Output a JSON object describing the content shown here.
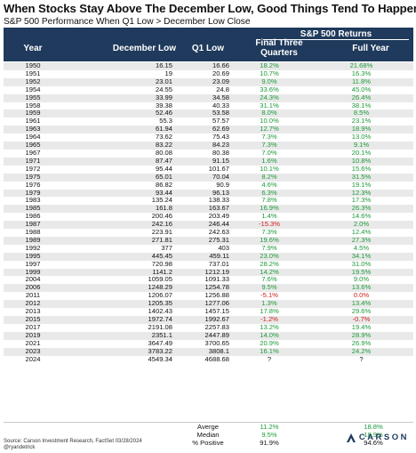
{
  "title": "When Stocks Stay Above The December Low, Good Things Tend To Happen",
  "subtitle": "S&P 500 Performance When Q1 Low > December Low Close",
  "headers": {
    "year": "Year",
    "december_low": "December Low",
    "q1_low": "Q1 Low",
    "sp_returns": "S&P 500 Returns",
    "final_three": "Final Three Quarters",
    "full_year": "Full Year"
  },
  "rows": [
    {
      "year": "1950",
      "dec": "16.15",
      "q1": "16.66",
      "ft": "18.2%",
      "fy": "21.68%"
    },
    {
      "year": "1951",
      "dec": "19",
      "q1": "20.69",
      "ft": "10.7%",
      "fy": "16.3%"
    },
    {
      "year": "1952",
      "dec": "23.01",
      "q1": "23.09",
      "ft": "9.0%",
      "fy": "11.8%"
    },
    {
      "year": "1954",
      "dec": "24.55",
      "q1": "24.8",
      "ft": "33.6%",
      "fy": "45.0%"
    },
    {
      "year": "1955",
      "dec": "33.99",
      "q1": "34.58",
      "ft": "24.3%",
      "fy": "26.4%"
    },
    {
      "year": "1958",
      "dec": "39.38",
      "q1": "40.33",
      "ft": "31.1%",
      "fy": "38.1%"
    },
    {
      "year": "1959",
      "dec": "52.46",
      "q1": "53.58",
      "ft": "8.0%",
      "fy": "8.5%"
    },
    {
      "year": "1961",
      "dec": "55.3",
      "q1": "57.57",
      "ft": "10.0%",
      "fy": "23.1%"
    },
    {
      "year": "1963",
      "dec": "61.94",
      "q1": "62.69",
      "ft": "12.7%",
      "fy": "18.9%"
    },
    {
      "year": "1964",
      "dec": "73.62",
      "q1": "75.43",
      "ft": "7.3%",
      "fy": "13.0%"
    },
    {
      "year": "1965",
      "dec": "83.22",
      "q1": "84.23",
      "ft": "7.3%",
      "fy": "9.1%"
    },
    {
      "year": "1967",
      "dec": "80.08",
      "q1": "80.38",
      "ft": "7.0%",
      "fy": "20.1%"
    },
    {
      "year": "1971",
      "dec": "87.47",
      "q1": "91.15",
      "ft": "1.6%",
      "fy": "10.8%"
    },
    {
      "year": "1972",
      "dec": "95.44",
      "q1": "101.67",
      "ft": "10.1%",
      "fy": "15.6%"
    },
    {
      "year": "1975",
      "dec": "65.01",
      "q1": "70.04",
      "ft": "8.2%",
      "fy": "31.5%"
    },
    {
      "year": "1976",
      "dec": "86.82",
      "q1": "90.9",
      "ft": "4.6%",
      "fy": "19.1%"
    },
    {
      "year": "1979",
      "dec": "93.44",
      "q1": "96.13",
      "ft": "6.3%",
      "fy": "12.3%"
    },
    {
      "year": "1983",
      "dec": "135.24",
      "q1": "138.33",
      "ft": "7.8%",
      "fy": "17.3%"
    },
    {
      "year": "1985",
      "dec": "161.8",
      "q1": "163.67",
      "ft": "16.9%",
      "fy": "26.3%"
    },
    {
      "year": "1986",
      "dec": "200.46",
      "q1": "203.49",
      "ft": "1.4%",
      "fy": "14.6%"
    },
    {
      "year": "1987",
      "dec": "242.16",
      "q1": "246.44",
      "ft": "-15.3%",
      "fy": "2.0%"
    },
    {
      "year": "1988",
      "dec": "223.91",
      "q1": "242.63",
      "ft": "7.3%",
      "fy": "12.4%"
    },
    {
      "year": "1989",
      "dec": "271.81",
      "q1": "275.31",
      "ft": "19.6%",
      "fy": "27.3%"
    },
    {
      "year": "1992",
      "dec": "377",
      "q1": "403",
      "ft": "7.9%",
      "fy": "4.5%"
    },
    {
      "year": "1995",
      "dec": "445.45",
      "q1": "459.11",
      "ft": "23.0%",
      "fy": "34.1%"
    },
    {
      "year": "1997",
      "dec": "720.98",
      "q1": "737.01",
      "ft": "28.2%",
      "fy": "31.0%"
    },
    {
      "year": "1999",
      "dec": "1141.2",
      "q1": "1212.19",
      "ft": "14.2%",
      "fy": "19.5%"
    },
    {
      "year": "2004",
      "dec": "1059.05",
      "q1": "1091.33",
      "ft": "7.6%",
      "fy": "9.0%"
    },
    {
      "year": "2006",
      "dec": "1248.29",
      "q1": "1254.78",
      "ft": "9.5%",
      "fy": "13.6%"
    },
    {
      "year": "2011",
      "dec": "1206.07",
      "q1": "1256.88",
      "ft": "-5.1%",
      "fy": "0.0%"
    },
    {
      "year": "2012",
      "dec": "1205.35",
      "q1": "1277.06",
      "ft": "1.3%",
      "fy": "13.4%"
    },
    {
      "year": "2013",
      "dec": "1402.43",
      "q1": "1457.15",
      "ft": "17.8%",
      "fy": "29.6%"
    },
    {
      "year": "2015",
      "dec": "1972.74",
      "q1": "1992.67",
      "ft": "-1.2%",
      "fy": "-0.7%"
    },
    {
      "year": "2017",
      "dec": "2191.08",
      "q1": "2257.83",
      "ft": "13.2%",
      "fy": "19.4%"
    },
    {
      "year": "2019",
      "dec": "2351.1",
      "q1": "2447.89",
      "ft": "14.0%",
      "fy": "28.9%"
    },
    {
      "year": "2021",
      "dec": "3647.49",
      "q1": "3700.65",
      "ft": "20.9%",
      "fy": "26.9%"
    },
    {
      "year": "2023",
      "dec": "3783.22",
      "q1": "3808.1",
      "ft": "16.1%",
      "fy": "24.2%"
    },
    {
      "year": "2024",
      "dec": "4549.34",
      "q1": "4688.68",
      "ft": "?",
      "fy": "?"
    }
  ],
  "summary": [
    {
      "label": "Averge",
      "ft": "11.2%",
      "fy": "18.8%"
    },
    {
      "label": "Median",
      "ft": "9.5%",
      "fy": "18.9%"
    },
    {
      "label": "% Positive",
      "ft": "91.9%",
      "fy": "94.6%"
    }
  ],
  "footer": {
    "source": "Source: Carson Investment Research, FactSet 03/28/2024",
    "handle": "@ryandetrick"
  },
  "brand": "CARSON",
  "colors": {
    "header_bg": "#1f3a5c",
    "positive": "#1a9a3a",
    "negative": "#d02020",
    "alt_row": "#e9e9e9"
  }
}
